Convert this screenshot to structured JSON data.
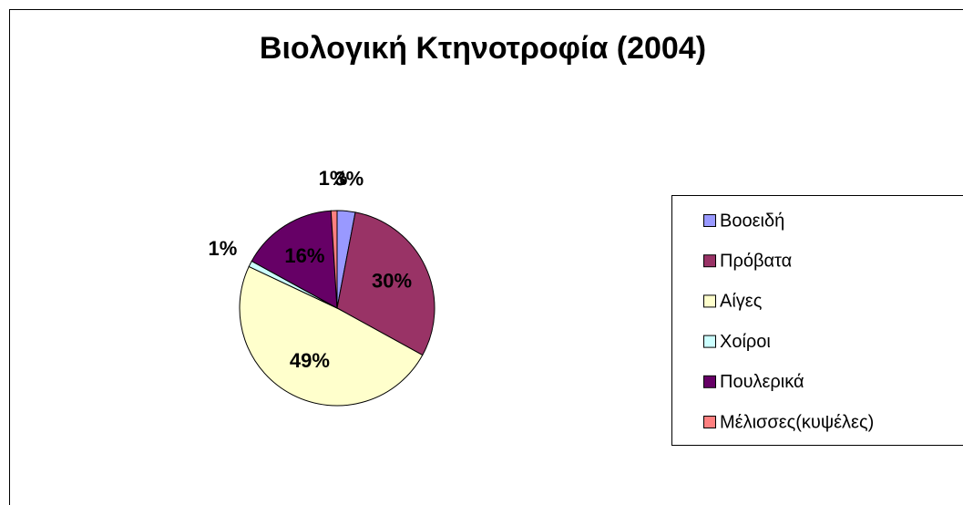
{
  "chart_data": {
    "type": "pie",
    "title": "Βιολογική Κτηνοτροφία (2004)",
    "categories": [
      "Βοοειδή",
      "Πρόβατα",
      "Αίγες",
      "Χοίροι",
      "Πουλερικά",
      "Μέλισσες(κυψέλες)"
    ],
    "values": [
      3,
      30,
      49,
      1,
      16,
      1
    ],
    "value_labels": [
      "3%",
      "30%",
      "49%",
      "1%",
      "16%",
      "1%"
    ],
    "colors": [
      "#9999ff",
      "#993366",
      "#ffffcc",
      "#ccffff",
      "#660066",
      "#ff8080"
    ],
    "legend": "right"
  }
}
